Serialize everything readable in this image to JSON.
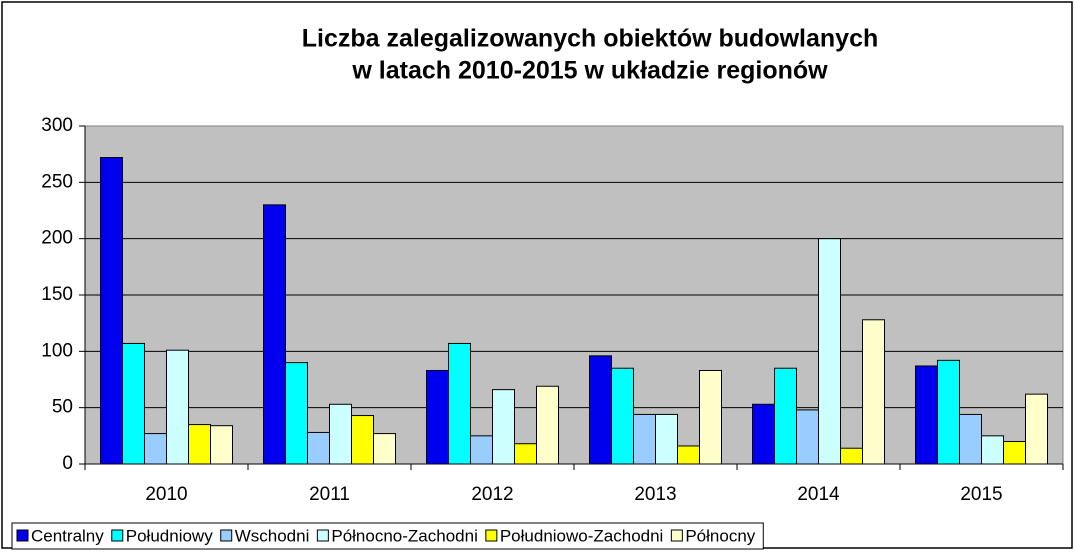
{
  "chart_data": {
    "type": "bar",
    "title": [
      "Liczba zalegalizowanych obiektów budowlanych",
      "w  latach  2010-2015 w układzie regionów"
    ],
    "categories": [
      "2010",
      "2011",
      "2012",
      "2013",
      "2014",
      "2015"
    ],
    "series": [
      {
        "name": "Centralny",
        "color": "#0000ee",
        "values": [
          272,
          230,
          83,
          96,
          53,
          87
        ]
      },
      {
        "name": "Południowy",
        "color": "#00ffff",
        "values": [
          107,
          90,
          107,
          85,
          85,
          92
        ]
      },
      {
        "name": "Wschodni",
        "color": "#99ccff",
        "values": [
          27,
          28,
          25,
          44,
          48,
          44
        ]
      },
      {
        "name": "Północno-Zachodni",
        "color": "#ccffff",
        "values": [
          101,
          53,
          66,
          44,
          200,
          25
        ]
      },
      {
        "name": "Południowo-Zachodni",
        "color": "#ffff00",
        "values": [
          35,
          43,
          18,
          16,
          14,
          20
        ]
      },
      {
        "name": "Północny",
        "color": "#ffffcc",
        "values": [
          34,
          27,
          69,
          83,
          128,
          62
        ]
      }
    ],
    "ylim": [
      0,
      300
    ],
    "yticks": [
      0,
      50,
      100,
      150,
      200,
      250,
      300
    ],
    "grid": true,
    "legend": "bottom"
  }
}
